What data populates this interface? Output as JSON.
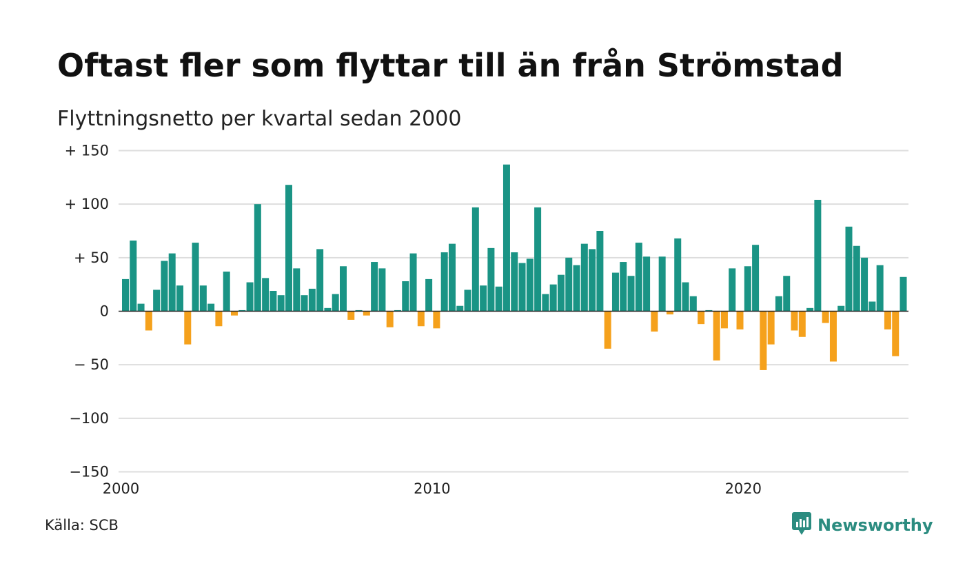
{
  "title": "Oftast fler som flyttar till än från Strömstad",
  "subtitle": "Flyttningsnetto per kvartal sedan 2000",
  "source": "Källa: SCB",
  "brand": {
    "name": "Newsworthy",
    "icon": "newsworthy-logo-icon"
  },
  "colors": {
    "positive": "#1a9485",
    "negative": "#f5a11c",
    "grid": "#dddddd",
    "axis": "#222222"
  },
  "chart_data": {
    "type": "bar",
    "title": "Oftast fler som flyttar till än från Strömstad",
    "subtitle": "Flyttningsnetto per kvartal sedan 2000",
    "xlabel": "",
    "ylabel": "",
    "ylim": [
      -150,
      150
    ],
    "y_ticks": [
      150,
      100,
      50,
      0,
      -50,
      -100,
      -150
    ],
    "y_tick_labels": [
      "+ 150",
      "+ 100",
      "+  50",
      "0",
      "− 50",
      "−100",
      "−150"
    ],
    "x_ticks": [
      2000,
      2010,
      2020
    ],
    "x_tick_labels": [
      "2000",
      "2010",
      "2020"
    ],
    "grid": true,
    "start_year": 2000,
    "periods_per_year": 4,
    "values": [
      30,
      66,
      7,
      -18,
      20,
      47,
      54,
      24,
      -31,
      64,
      24,
      7,
      -14,
      37,
      -4,
      1,
      27,
      100,
      31,
      19,
      15,
      118,
      40,
      15,
      21,
      58,
      3,
      16,
      42,
      -8,
      1,
      -4,
      46,
      40,
      -15,
      1,
      28,
      54,
      -14,
      30,
      -16,
      55,
      63,
      5,
      20,
      97,
      24,
      59,
      23,
      137,
      55,
      45,
      49,
      97,
      16,
      25,
      34,
      50,
      43,
      63,
      58,
      75,
      -35,
      36,
      46,
      33,
      64,
      51,
      -19,
      51,
      -3,
      68,
      27,
      14,
      -12,
      1,
      -46,
      -16,
      40,
      -17,
      42,
      62,
      -55,
      -31,
      14,
      33,
      -18,
      -24,
      3,
      104,
      -11,
      -47,
      5,
      79,
      61,
      50,
      9,
      43,
      -17,
      -42,
      32
    ]
  }
}
